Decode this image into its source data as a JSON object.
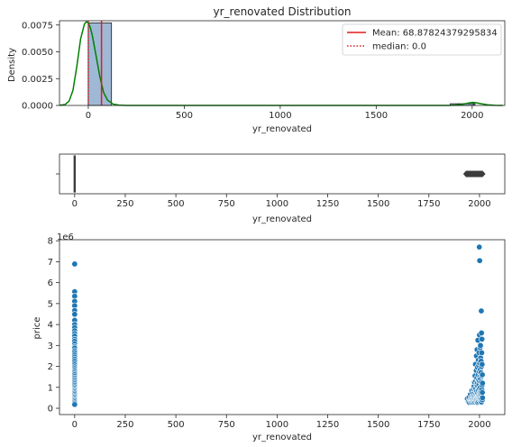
{
  "chart_data": [
    {
      "type": "bar",
      "subtype": "histogram_with_kde",
      "title": "yr_renovated Distribution",
      "xlabel": "yr_renovated",
      "ylabel": "Density",
      "xlim": [
        -150,
        2170
      ],
      "ylim": [
        0,
        0.0079
      ],
      "xticks": [
        0,
        500,
        1000,
        1500,
        2000
      ],
      "xtick_labels": [
        "0",
        "500",
        "1000",
        "1500",
        "2000"
      ],
      "yticks": [
        0,
        0.0025,
        0.005,
        0.0075
      ],
      "ytick_labels": [
        "0.0000",
        "0.0025",
        "0.0050",
        "0.0075"
      ],
      "bins": [
        {
          "start": 0,
          "end": 121,
          "density": 0.0077
        },
        {
          "start": 1886,
          "end": 2007,
          "density": 0.00016
        },
        {
          "start": 2007,
          "end": 2015,
          "density": 0.00016
        }
      ],
      "kde": {
        "x": [
          -150,
          -120,
          -100,
          -80,
          -60,
          -40,
          -20,
          -10,
          0,
          10,
          20,
          40,
          60,
          80,
          100,
          130,
          160,
          200,
          300,
          500,
          1000,
          1500,
          1800,
          1880,
          1920,
          1960,
          1990,
          2005,
          2020,
          2050,
          2080,
          2120,
          2160
        ],
        "y": [
          1e-05,
          0.0001,
          0.0004,
          0.0014,
          0.0036,
          0.0062,
          0.0076,
          0.0078,
          0.0077,
          0.0073,
          0.0066,
          0.0047,
          0.0027,
          0.0012,
          0.0005,
          0.00012,
          3e-05,
          5e-06,
          0,
          0,
          0,
          0,
          0,
          2e-06,
          4e-05,
          0.00015,
          0.00025,
          0.00028,
          0.00025,
          0.00015,
          6e-05,
          1e-05,
          0
        ],
        "color": "#008000"
      },
      "mean": 68.87824379295834,
      "median": 0.0,
      "legend": {
        "position": "top-right",
        "entries": [
          "Mean: 68.87824379295834",
          "median: 0.0"
        ]
      },
      "bar_color": "#9fb8d6",
      "mean_color": "#e41a1c",
      "median_color": "#e41a1c"
    },
    {
      "type": "boxplot",
      "xlabel": "yr_renovated",
      "xlim": [
        -75,
        2125
      ],
      "xticks": [
        0,
        250,
        500,
        750,
        1000,
        1250,
        1500,
        1750,
        2000
      ],
      "xtick_labels": [
        "0",
        "250",
        "500",
        "750",
        "1000",
        "1250",
        "1500",
        "1750",
        "2000"
      ],
      "q1": 0,
      "median": 0,
      "q3": 0,
      "whisker_low": 0,
      "whisker_high": 0,
      "outliers_range": [
        1934,
        2015
      ],
      "outlier_count": 90
    },
    {
      "type": "scatter",
      "xlabel": "yr_renovated",
      "ylabel": "price",
      "y_offset_label": "1e6",
      "xlim": [
        -75,
        2125
      ],
      "ylim": [
        -0.3,
        8.05
      ],
      "xticks": [
        0,
        250,
        500,
        750,
        1000,
        1250,
        1500,
        1750,
        2000
      ],
      "xtick_labels": [
        "0",
        "250",
        "500",
        "750",
        "1000",
        "1250",
        "1500",
        "1750",
        "2000"
      ],
      "yticks": [
        0,
        1,
        2,
        3,
        4,
        5,
        6,
        7,
        8
      ],
      "ytick_labels": [
        "0",
        "1",
        "2",
        "3",
        "4",
        "5",
        "6",
        "7",
        "8"
      ],
      "color": "#1f77b4",
      "points": [
        [
          0,
          6.89
        ],
        [
          0,
          5.57
        ],
        [
          0,
          5.35
        ],
        [
          0,
          5.11
        ],
        [
          0,
          4.9
        ],
        [
          0,
          4.67
        ],
        [
          0,
          4.49
        ],
        [
          0,
          4.2
        ],
        [
          0,
          4.0
        ],
        [
          0,
          3.85
        ],
        [
          0,
          3.7
        ],
        [
          0,
          3.57
        ],
        [
          0,
          3.45
        ],
        [
          0,
          3.3
        ],
        [
          0,
          3.2
        ],
        [
          0,
          3.07
        ],
        [
          0,
          2.95
        ],
        [
          0,
          2.88
        ],
        [
          0,
          2.75
        ],
        [
          0,
          2.66
        ],
        [
          0,
          2.55
        ],
        [
          0,
          2.45
        ],
        [
          0,
          2.35
        ],
        [
          0,
          2.25
        ],
        [
          0,
          2.15
        ],
        [
          0,
          2.07
        ],
        [
          0,
          1.98
        ],
        [
          0,
          1.9
        ],
        [
          0,
          1.82
        ],
        [
          0,
          1.75
        ],
        [
          0,
          1.67
        ],
        [
          0,
          1.6
        ],
        [
          0,
          1.52
        ],
        [
          0,
          1.45
        ],
        [
          0,
          1.38
        ],
        [
          0,
          1.31
        ],
        [
          0,
          1.24
        ],
        [
          0,
          1.17
        ],
        [
          0,
          1.1
        ],
        [
          0,
          1.03
        ],
        [
          0,
          0.96
        ],
        [
          0,
          0.9
        ],
        [
          0,
          0.84
        ],
        [
          0,
          0.78
        ],
        [
          0,
          0.72
        ],
        [
          0,
          0.66
        ],
        [
          0,
          0.6
        ],
        [
          0,
          0.54
        ],
        [
          0,
          0.48
        ],
        [
          0,
          0.42
        ],
        [
          0,
          0.36
        ],
        [
          0,
          0.3
        ],
        [
          0,
          0.24
        ],
        [
          0,
          0.18
        ],
        [
          1940,
          0.45
        ],
        [
          1945,
          0.32
        ],
        [
          1948,
          0.52
        ],
        [
          1950,
          0.28
        ],
        [
          1954,
          0.38
        ],
        [
          1955,
          0.65
        ],
        [
          1957,
          0.42
        ],
        [
          1958,
          0.3
        ],
        [
          1960,
          0.52
        ],
        [
          1962,
          0.85
        ],
        [
          1963,
          0.34
        ],
        [
          1964,
          0.45
        ],
        [
          1965,
          0.6
        ],
        [
          1967,
          0.3
        ],
        [
          1968,
          0.72
        ],
        [
          1969,
          0.4
        ],
        [
          1970,
          0.9
        ],
        [
          1970,
          0.55
        ],
        [
          1971,
          0.35
        ],
        [
          1972,
          0.48
        ],
        [
          1973,
          1.05
        ],
        [
          1974,
          0.62
        ],
        [
          1975,
          1.25
        ],
        [
          1975,
          0.4
        ],
        [
          1976,
          0.75
        ],
        [
          1977,
          0.3
        ],
        [
          1978,
          1.55
        ],
        [
          1978,
          0.52
        ],
        [
          1979,
          0.88
        ],
        [
          1980,
          2.1
        ],
        [
          1980,
          0.45
        ],
        [
          1981,
          0.95
        ],
        [
          1982,
          1.3
        ],
        [
          1982,
          0.35
        ],
        [
          1983,
          0.68
        ],
        [
          1984,
          1.8
        ],
        [
          1984,
          0.5
        ],
        [
          1985,
          2.5
        ],
        [
          1985,
          1.1
        ],
        [
          1985,
          0.42
        ],
        [
          1986,
          0.8
        ],
        [
          1987,
          1.45
        ],
        [
          1987,
          0.3
        ],
        [
          1988,
          2.8
        ],
        [
          1988,
          0.6
        ],
        [
          1989,
          1.2
        ],
        [
          1989,
          0.38
        ],
        [
          1990,
          1.95
        ],
        [
          1990,
          0.72
        ],
        [
          1991,
          1.05
        ],
        [
          1991,
          0.28
        ],
        [
          1992,
          3.25
        ],
        [
          1992,
          0.55
        ],
        [
          1993,
          1.6
        ],
        [
          1993,
          0.85
        ],
        [
          1994,
          2.3
        ],
        [
          1994,
          0.45
        ],
        [
          1995,
          1.35
        ],
        [
          1995,
          0.62
        ],
        [
          1996,
          2.05
        ],
        [
          1996,
          0.33
        ],
        [
          1997,
          1.15
        ],
        [
          1997,
          0.7
        ],
        [
          1998,
          2.65
        ],
        [
          1998,
          0.48
        ],
        [
          1999,
          1.75
        ],
        [
          1999,
          0.95
        ],
        [
          2000,
          3.5
        ],
        [
          2000,
          0.58
        ],
        [
          2000,
          1.3
        ],
        [
          2001,
          2.15
        ],
        [
          2001,
          0.4
        ],
        [
          2002,
          1.5
        ],
        [
          2002,
          0.75
        ],
        [
          2003,
          2.9
        ],
        [
          2003,
          0.5
        ],
        [
          2004,
          1.85
        ],
        [
          2004,
          1.0
        ],
        [
          2005,
          3.0
        ],
        [
          2005,
          0.62
        ],
        [
          2005,
          1.4
        ],
        [
          2006,
          2.4
        ],
        [
          2006,
          0.35
        ],
        [
          2007,
          1.7
        ],
        [
          2007,
          0.8
        ],
        [
          2008,
          2.25
        ],
        [
          2008,
          0.45
        ],
        [
          2009,
          1.25
        ],
        [
          2009,
          0.65
        ],
        [
          2010,
          2.0
        ],
        [
          2010,
          0.3
        ],
        [
          2011,
          1.55
        ],
        [
          2011,
          0.9
        ],
        [
          2012,
          3.3
        ],
        [
          2012,
          0.55
        ],
        [
          2013,
          2.1
        ],
        [
          2013,
          1.1
        ],
        [
          2014,
          1.6
        ],
        [
          2014,
          0.4
        ],
        [
          2014,
          0.75
        ],
        [
          2015,
          1.2
        ],
        [
          2015,
          0.5
        ],
        [
          1999,
          7.7
        ],
        [
          2001,
          7.05
        ],
        [
          2009,
          4.65
        ],
        [
          2010,
          3.6
        ],
        [
          2011,
          2.65
        ]
      ]
    }
  ]
}
